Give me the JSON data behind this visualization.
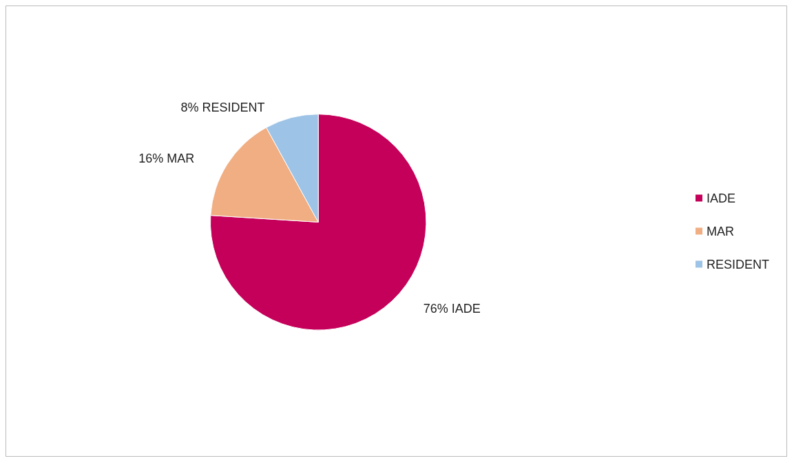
{
  "chart_data": {
    "type": "pie",
    "categories": [
      "IADE",
      "MAR",
      "RESIDENT"
    ],
    "values": [
      76,
      16,
      8
    ],
    "colors": [
      "#c5005a",
      "#f0ae82",
      "#9dc3e6"
    ],
    "value_labels": [
      "76% IADE",
      "16% MAR",
      "8% RESIDENT"
    ],
    "legend": "right"
  }
}
